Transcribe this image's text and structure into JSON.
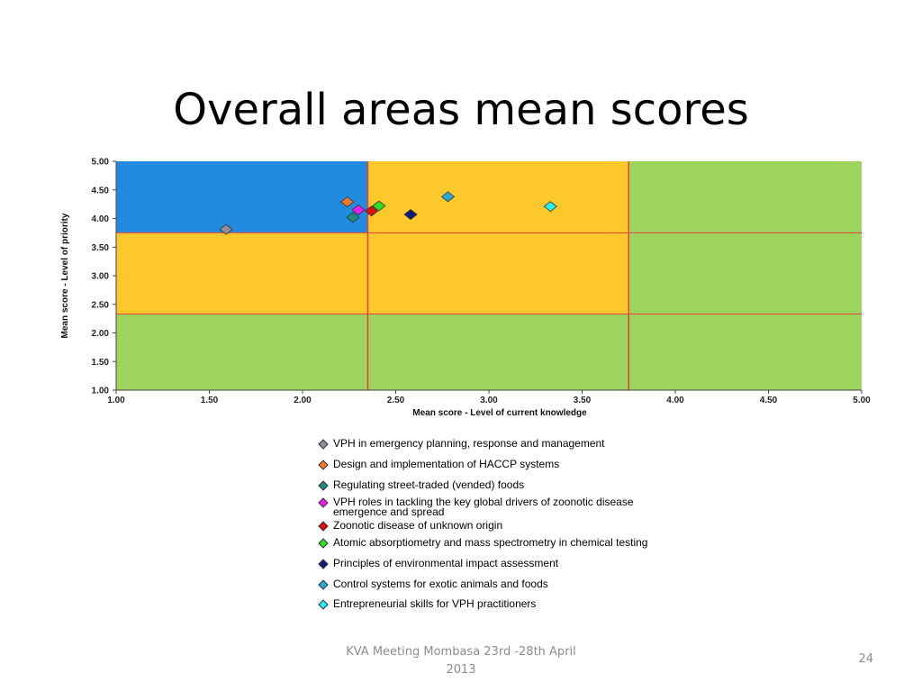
{
  "slide": {
    "title": "Overall areas mean scores",
    "footer_line1": "KVA Meeting Mombasa 23rd -28th April",
    "footer_line2": "2013",
    "page_number": "24"
  },
  "chart_data": {
    "type": "scatter",
    "title": "",
    "xlabel": "Mean score - Level of current knowledge",
    "ylabel": "Mean score - Level of priority",
    "xlim": [
      1.0,
      5.0
    ],
    "ylim": [
      1.0,
      5.0
    ],
    "x_ticks": [
      "1.00",
      "1.50",
      "2.00",
      "2.50",
      "3.00",
      "3.50",
      "4.00",
      "4.50",
      "5.00"
    ],
    "y_ticks": [
      "1.00",
      "1.50",
      "2.00",
      "2.50",
      "3.00",
      "3.50",
      "4.00",
      "4.50",
      "5.00"
    ],
    "x_thresholds": [
      2.35,
      3.75
    ],
    "y_thresholds": [
      2.33,
      3.75
    ],
    "regions": [
      {
        "x": [
          1.0,
          2.35
        ],
        "y": [
          3.75,
          5.0
        ],
        "color": "#228be0"
      },
      {
        "x": [
          2.35,
          3.75
        ],
        "y": [
          3.75,
          5.0
        ],
        "color": "#fcc82b"
      },
      {
        "x": [
          1.0,
          2.35
        ],
        "y": [
          2.33,
          3.75
        ],
        "color": "#fcc82b"
      },
      {
        "x": [
          2.35,
          3.75
        ],
        "y": [
          2.33,
          3.75
        ],
        "color": "#fcc82b"
      },
      {
        "x": [
          3.75,
          5.0
        ],
        "y": [
          2.33,
          5.0
        ],
        "color": "#9cd45d"
      },
      {
        "x": [
          1.0,
          5.0
        ],
        "y": [
          1.0,
          2.33
        ],
        "color": "#9cd45d"
      }
    ],
    "threshold_line_color": "#e8413a",
    "grid": false,
    "legend_position": "bottom",
    "series": [
      {
        "name": "VPH in emergency planning, response and management",
        "x": 1.59,
        "y": 3.81,
        "color": "#8f8f9c"
      },
      {
        "name": "Design and implementation of HACCP systems",
        "x": 2.24,
        "y": 4.29,
        "color": "#f07a2a"
      },
      {
        "name": "Regulating street-traded (vended) foods",
        "x": 2.27,
        "y": 4.02,
        "color": "#1f8a80"
      },
      {
        "name": "VPH roles in tackling the key global drivers of zoonotic disease emergence and spread",
        "x": 2.3,
        "y": 4.15,
        "color": "#ee1ef0"
      },
      {
        "name": "Zoonotic disease of unknown origin",
        "x": 2.37,
        "y": 4.13,
        "color": "#e01010"
      },
      {
        "name": "Atomic absorptiometry and mass spectrometry in chemical testing",
        "x": 2.41,
        "y": 4.22,
        "color": "#2ee020"
      },
      {
        "name": "Principles of environmental impact assessment",
        "x": 2.58,
        "y": 4.07,
        "color": "#101a7a"
      },
      {
        "name": "Control systems for exotic animals and foods",
        "x": 2.78,
        "y": 4.38,
        "color": "#2aa8d8"
      },
      {
        "name": "Entrepreneurial skills for VPH practitioners",
        "x": 3.33,
        "y": 4.21,
        "color": "#28f0f0"
      }
    ]
  },
  "legend_labels": [
    "VPH in emergency planning, response and management",
    "Design and implementation of HACCP systems",
    "Regulating street-traded (vended) foods",
    "VPH roles in tackling the key global drivers of zoonotic disease emergence and spread",
    "Zoonotic disease of unknown origin",
    "Atomic absorptiometry and mass spectrometry in chemical testing",
    "Principles of environmental impact assessment",
    "Control systems for exotic animals and foods",
    "Entrepreneurial skills for VPH practitioners"
  ]
}
